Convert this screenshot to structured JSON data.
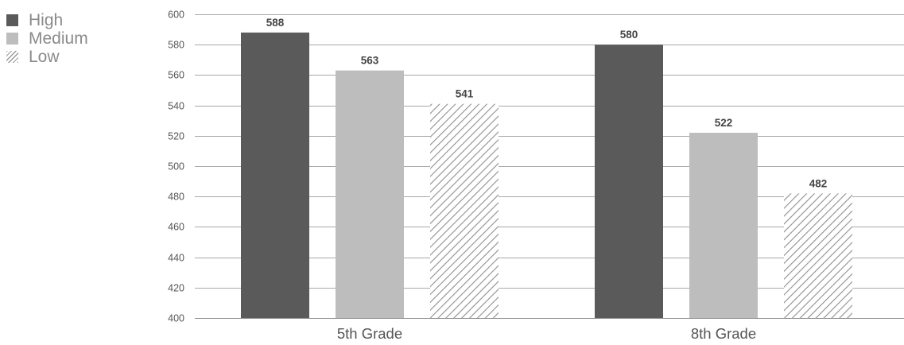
{
  "chart_data": {
    "type": "bar",
    "categories": [
      "5th Grade",
      "8th Grade"
    ],
    "series": [
      {
        "name": "High",
        "values": [
          588,
          580
        ],
        "color": "#5a5a5a",
        "pattern": "solid"
      },
      {
        "name": "Medium",
        "values": [
          563,
          522
        ],
        "color": "#bdbdbd",
        "pattern": "solid"
      },
      {
        "name": "Low",
        "values": [
          541,
          482
        ],
        "color": "#9a9a9a",
        "pattern": "hatch"
      }
    ],
    "data_labels": true,
    "title": "",
    "xlabel": "",
    "ylabel": "",
    "ylim": [
      400,
      600
    ],
    "yticks": [
      400,
      420,
      440,
      460,
      480,
      500,
      520,
      540,
      560,
      580,
      600
    ],
    "grid": true,
    "legend_position": "top-left"
  }
}
